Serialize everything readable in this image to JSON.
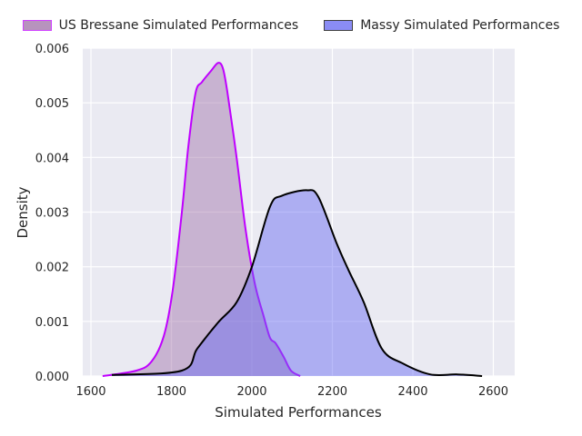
{
  "chart_data": {
    "type": "area",
    "title": "",
    "xlabel": "Simulated Performances",
    "ylabel": "Density",
    "xlim": [
      1580,
      2640
    ],
    "ylim": [
      0,
      0.006
    ],
    "xticks": [
      "1600",
      "1800",
      "2000",
      "2200",
      "2400",
      "2600"
    ],
    "xtick_values": [
      1600,
      1800,
      2000,
      2200,
      2400,
      2600
    ],
    "yticks": [
      "0.000",
      "0.001",
      "0.002",
      "0.003",
      "0.004",
      "0.005",
      "0.006"
    ],
    "ytick_values": [
      0,
      0.001,
      0.002,
      0.003,
      0.004,
      0.005,
      0.006
    ],
    "grid": true,
    "legend_position": "top-center",
    "series": [
      {
        "name": "US Bressane Simulated Performances",
        "line_color": "#bf00ff",
        "fill_color": "#a070a8",
        "x": [
          1629,
          1713,
          1751,
          1781,
          1803,
          1826,
          1842,
          1860,
          1876,
          1898,
          1916,
          1928,
          1939,
          1962,
          1984,
          2007,
          2029,
          2045,
          2059,
          2079,
          2097,
          2120
        ],
        "y": [
          0,
          0.0001,
          0.00027,
          0.00073,
          0.00156,
          0.003,
          0.0042,
          0.00518,
          0.00538,
          0.00558,
          0.00573,
          0.00563,
          0.0052,
          0.004,
          0.0027,
          0.0017,
          0.0011,
          0.0007,
          0.0006,
          0.00035,
          0.0001,
          0
        ]
      },
      {
        "name": "Massy Simulated Performances",
        "line_color": "#000000",
        "fill_color": "#6366f1",
        "x": [
          1652,
          1826,
          1864,
          1916,
          1962,
          2000,
          2045,
          2075,
          2136,
          2165,
          2210,
          2240,
          2278,
          2323,
          2375,
          2443,
          2511,
          2572
        ],
        "y": [
          2e-05,
          0.0001,
          0.0005,
          0.00098,
          0.00135,
          0.002,
          0.0031,
          0.0033,
          0.0034,
          0.00328,
          0.00244,
          0.00194,
          0.00135,
          0.0005,
          0.00023,
          3e-05,
          3e-05,
          0
        ]
      }
    ]
  }
}
